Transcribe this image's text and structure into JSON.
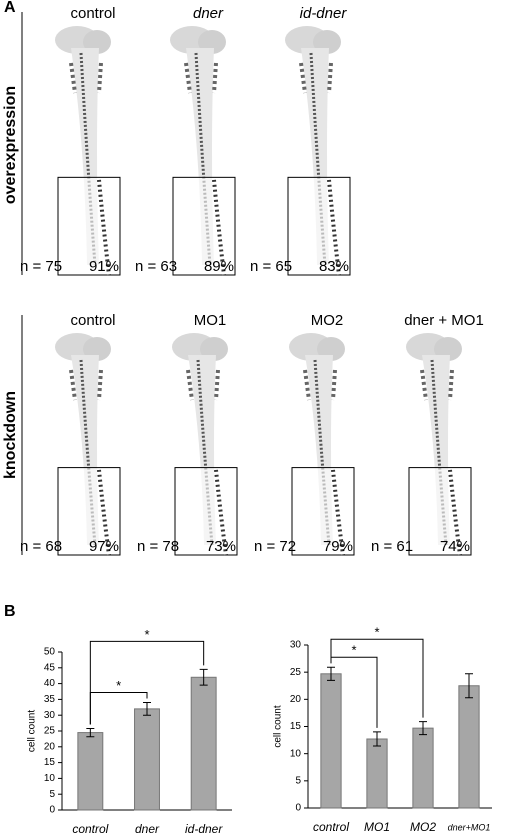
{
  "panel_a": {
    "label": "A",
    "rows": [
      {
        "label": "overexpression",
        "columns": [
          {
            "title": "control",
            "italic": false,
            "n": "n = 75",
            "pct": "91%"
          },
          {
            "title": "dner",
            "italic": true,
            "n": "n = 63",
            "pct": "89%"
          },
          {
            "title": "id-dner",
            "italic": true,
            "n": "n = 65",
            "pct": "83%"
          }
        ]
      },
      {
        "label": "knockdown",
        "columns": [
          {
            "title": "control",
            "italic": false,
            "n": "n = 68",
            "pct": "97%"
          },
          {
            "title": "MO1",
            "italic": false,
            "n": "n = 78",
            "pct": "73%"
          },
          {
            "title": "MO2",
            "italic": false,
            "n": "n = 72",
            "pct": "79%"
          },
          {
            "title": "dner + MO1",
            "italic": false,
            "n": "n = 61",
            "pct": "74%"
          }
        ]
      }
    ]
  },
  "panel_b": {
    "label": "B"
  },
  "chart_data": [
    {
      "type": "bar",
      "ylabel": "cell count",
      "categories": [
        "control",
        "dner",
        "id-dner"
      ],
      "values": [
        24.5,
        32,
        42
      ],
      "errors": [
        1.3,
        2,
        2.5
      ],
      "color": "#a6a6a6",
      "ylim": [
        0,
        50
      ],
      "yticks": [
        0,
        5,
        10,
        15,
        20,
        25,
        30,
        35,
        40,
        45,
        50
      ],
      "significance": [
        {
          "from": 0,
          "to": 1,
          "label": "*"
        },
        {
          "from": 0,
          "to": 2,
          "label": "*"
        }
      ]
    },
    {
      "type": "bar",
      "ylabel": "cell count",
      "categories": [
        "control",
        "MO1",
        "MO2",
        "dner+MO1"
      ],
      "values": [
        24.7,
        12.7,
        14.7,
        22.5
      ],
      "errors": [
        1.2,
        1.3,
        1.2,
        2.2
      ],
      "color": "#a6a6a6",
      "ylim": [
        0,
        30
      ],
      "yticks": [
        0,
        5,
        10,
        15,
        20,
        25,
        30
      ],
      "significance": [
        {
          "from": 0,
          "to": 1,
          "label": "*"
        },
        {
          "from": 0,
          "to": 2,
          "label": "*"
        }
      ]
    }
  ]
}
